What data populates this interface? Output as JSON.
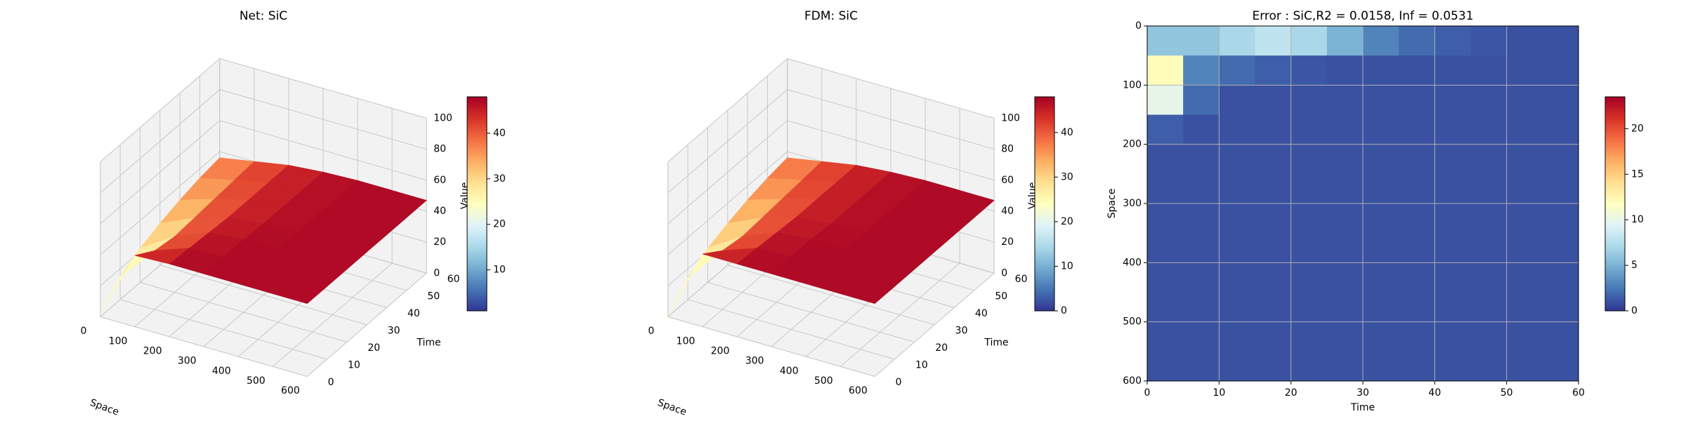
{
  "colormap": [
    "#313695",
    "#4575b4",
    "#74add1",
    "#abd9e9",
    "#e0f3f8",
    "#ffffbf",
    "#fee090",
    "#fdae61",
    "#f46d43",
    "#d73027",
    "#a50026"
  ],
  "chart_data": [
    {
      "type": "surface3d",
      "title": "Net: SiC",
      "xlabel": "Space",
      "ylabel": "Time",
      "zlabel": "Value",
      "x": [
        0,
        100,
        200,
        300,
        400,
        500,
        600
      ],
      "y": [
        0,
        10,
        20,
        30,
        40,
        50,
        60
      ],
      "z": [
        [
          2,
          46,
          47,
          47,
          47,
          47,
          47
        ],
        [
          15,
          38,
          46,
          47,
          47,
          47,
          47
        ],
        [
          22,
          36,
          45,
          47,
          47,
          47,
          47
        ],
        [
          27,
          37,
          44,
          46,
          47,
          47,
          47
        ],
        [
          31,
          38,
          44,
          46,
          47,
          47,
          47
        ],
        [
          34,
          39,
          44,
          46,
          47,
          47,
          47
        ],
        [
          36,
          40,
          44,
          46,
          47,
          47,
          47
        ]
      ],
      "xlim": [
        0,
        600
      ],
      "ylim": [
        0,
        60
      ],
      "zlim": [
        0,
        100
      ],
      "xticks": [
        0,
        100,
        200,
        300,
        400,
        500,
        600
      ],
      "yticks": [
        0,
        10,
        20,
        30,
        40,
        50,
        60
      ],
      "zticks": [
        0,
        20,
        40,
        60,
        80,
        100
      ],
      "clim": [
        1,
        48
      ],
      "cticks": [
        10,
        20,
        30,
        40
      ]
    },
    {
      "type": "surface3d",
      "title": "FDM: SiC",
      "xlabel": "Space",
      "ylabel": "Time",
      "zlabel": "Value",
      "x": [
        0,
        100,
        200,
        300,
        400,
        500,
        600
      ],
      "y": [
        0,
        10,
        20,
        30,
        40,
        50,
        60
      ],
      "z": [
        [
          0,
          47,
          47,
          47,
          47,
          47,
          47
        ],
        [
          14,
          38,
          46,
          47,
          47,
          47,
          47
        ],
        [
          22,
          36,
          45,
          47,
          47,
          47,
          47
        ],
        [
          27,
          37,
          44,
          46,
          47,
          47,
          47
        ],
        [
          31,
          38,
          44,
          46,
          47,
          47,
          47
        ],
        [
          34,
          39,
          44,
          46,
          47,
          47,
          47
        ],
        [
          36,
          40,
          44,
          46,
          47,
          47,
          47
        ]
      ],
      "xlim": [
        0,
        600
      ],
      "ylim": [
        0,
        60
      ],
      "zlim": [
        0,
        100
      ],
      "xticks": [
        0,
        100,
        200,
        300,
        400,
        500,
        600
      ],
      "yticks": [
        0,
        10,
        20,
        30,
        40,
        50,
        60
      ],
      "zticks": [
        0,
        20,
        40,
        60,
        80,
        100
      ],
      "clim": [
        0,
        48
      ],
      "cticks": [
        0,
        10,
        20,
        30,
        40
      ]
    },
    {
      "type": "heatmap",
      "title": "Error : SiC,R2 = 0.0158, Inf = 0.0531",
      "xlabel": "Time",
      "ylabel": "Space",
      "xbins": [
        0,
        5,
        10,
        15,
        20,
        25,
        30,
        35,
        40,
        45,
        50,
        55,
        60
      ],
      "ybins": [
        0,
        50,
        100,
        150,
        200,
        250,
        300,
        350,
        400,
        450,
        500,
        550,
        600
      ],
      "values": [
        [
          6,
          6,
          7,
          8,
          7,
          5,
          3,
          2,
          1.5,
          1.2,
          1,
          1
        ],
        [
          12,
          3,
          2,
          1.5,
          1.2,
          1,
          1,
          1,
          1,
          1,
          1,
          1
        ],
        [
          10,
          2,
          1,
          1,
          1,
          1,
          1,
          1,
          1,
          1,
          1,
          1
        ],
        [
          1.5,
          1,
          1,
          1,
          1,
          1,
          1,
          1,
          1,
          1,
          1,
          1
        ],
        [
          1,
          1,
          1,
          1,
          1,
          1,
          1,
          1,
          1,
          1,
          1,
          1
        ],
        [
          1,
          1,
          1,
          1,
          1,
          1,
          1,
          1,
          1,
          1,
          1,
          1
        ],
        [
          1,
          1,
          1,
          1,
          1,
          1,
          1,
          1,
          1,
          1,
          1,
          1
        ],
        [
          1,
          1,
          1,
          1,
          1,
          1,
          1,
          1,
          1,
          1,
          1,
          1
        ],
        [
          1,
          1,
          1,
          1,
          1,
          1,
          1,
          1,
          1,
          1,
          1,
          1
        ],
        [
          1,
          1,
          1,
          1,
          1,
          1,
          1,
          1,
          1,
          1,
          1,
          1
        ],
        [
          1,
          1,
          1,
          1,
          1,
          1,
          1,
          1,
          1,
          1,
          1,
          1
        ],
        [
          1,
          1,
          1,
          1,
          1,
          1,
          1,
          1,
          1,
          1,
          1,
          1
        ]
      ],
      "xlim": [
        0,
        60
      ],
      "ylim": [
        600,
        0
      ],
      "xticks": [
        0,
        10,
        20,
        30,
        40,
        50,
        60
      ],
      "yticks": [
        0,
        100,
        200,
        300,
        400,
        500,
        600
      ],
      "clim": [
        0,
        23.5
      ],
      "cticks": [
        0,
        5,
        10,
        15,
        20
      ],
      "grid": true
    }
  ]
}
